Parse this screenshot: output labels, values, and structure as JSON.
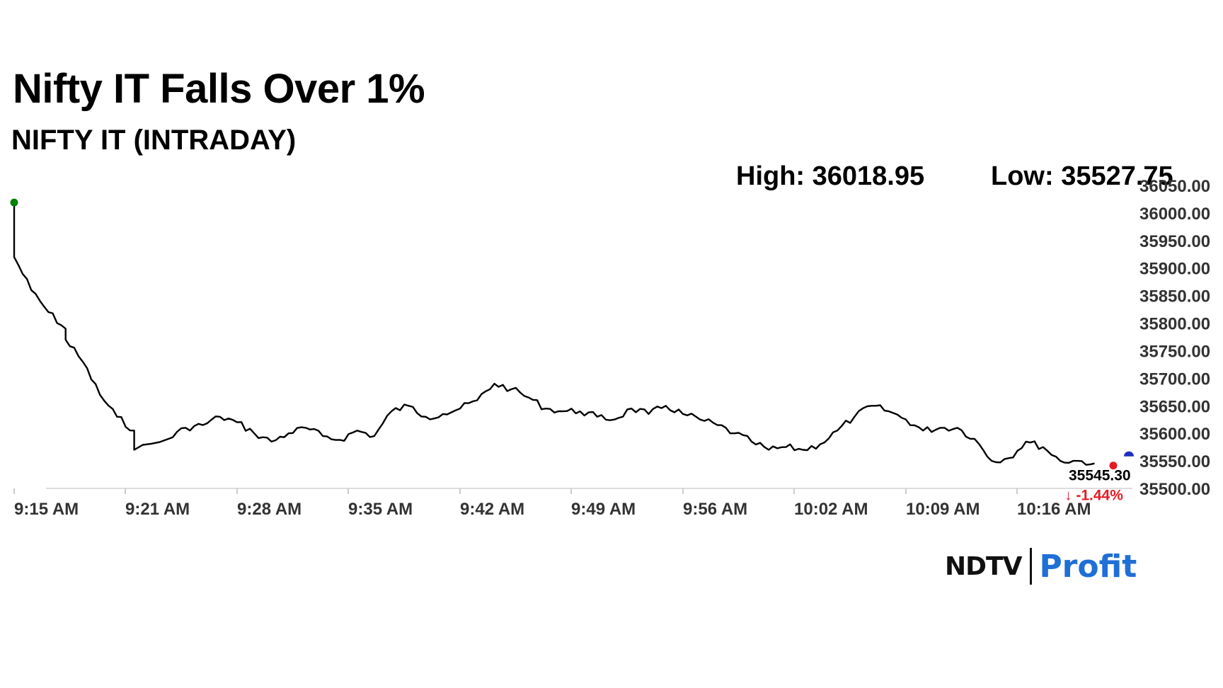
{
  "header": {
    "title": "Nifty IT Falls Over 1%",
    "subtitle": "NIFTY IT (INTRADAY)",
    "high_text": "High: 36018.95",
    "low_text": "Low: 35527.75"
  },
  "brand": {
    "ndtv": "NDTV",
    "profit": "Profit",
    "colors": {
      "profit_start": "#1f6fd6",
      "profit_end": "#e84393",
      "ndtv_dot": "#e31b23"
    }
  },
  "chart_data": {
    "type": "line",
    "title": "NIFTY IT (INTRADAY)",
    "x_tick_labels": [
      "9:15 AM",
      "9:21 AM",
      "9:28 AM",
      "9:35 AM",
      "9:42 AM",
      "9:49 AM",
      "9:56 AM",
      "10:02 AM",
      "10:09 AM",
      "10:16 AM"
    ],
    "y_tick_labels": [
      "35500.00",
      "35550.00",
      "35600.00",
      "35650.00",
      "35700.00",
      "35750.00",
      "35800.00",
      "35850.00",
      "35900.00",
      "35950.00",
      "36000.00",
      "36050.00"
    ],
    "ylim": [
      35500,
      36050
    ],
    "x_minutes_range": [
      0,
      66
    ],
    "grid": false,
    "line_color": "#000000",
    "series": [
      {
        "x_time": [
          "9:15",
          "9:15",
          "9:16",
          "9:17",
          "9:18",
          "9:18",
          "9:19",
          "9:20",
          "9:21",
          "9:22",
          "9:22",
          "9:24",
          "9:25",
          "9:26",
          "9:27",
          "9:28",
          "9:29",
          "9:30",
          "9:31",
          "9:32",
          "9:33",
          "9:34",
          "9:35",
          "9:36",
          "9:37",
          "9:38",
          "9:39",
          "9:40",
          "9:41",
          "9:42",
          "9:43",
          "9:44",
          "9:45",
          "9:46",
          "9:47",
          "9:48",
          "9:49",
          "9:50",
          "9:51",
          "9:52",
          "9:53",
          "9:54",
          "9:55",
          "9:56",
          "9:57",
          "9:58",
          "9:59",
          "10:00",
          "10:01",
          "10:02",
          "10:03",
          "10:04",
          "10:05",
          "10:06",
          "10:07",
          "10:08",
          "10:09",
          "10:10",
          "10:11",
          "10:12",
          "10:13",
          "10:14",
          "10:15",
          "10:16",
          "10:17",
          "10:18"
        ],
        "values": [
          36018.95,
          35920,
          35860,
          35820,
          35790,
          35770,
          35730,
          35670,
          35630,
          35605,
          35570,
          35590,
          35610,
          35615,
          35630,
          35620,
          35600,
          35585,
          35600,
          35610,
          35595,
          35588,
          35605,
          35595,
          35640,
          35650,
          35630,
          35635,
          35645,
          35660,
          35690,
          35680,
          35665,
          35645,
          35640,
          35640,
          35630,
          35625,
          35645,
          35635,
          35650,
          35635,
          35625,
          35615,
          35600,
          35585,
          35570,
          35575,
          35570,
          35580,
          35605,
          35630,
          35650,
          35640,
          35625,
          35605,
          35610,
          35610,
          35590,
          35550,
          35555,
          35585,
          35575,
          35550,
          35550,
          35545.3
        ]
      }
    ],
    "start_marker": {
      "value": 36018.95,
      "color": "#008000"
    },
    "last_value_label": "35545.30",
    "change_label": "-1.44%",
    "change_arrow": "↓",
    "change_color": "#e31b23",
    "last_marker_color": "#e31b23",
    "end_marker_color": "#1f2fbf"
  }
}
